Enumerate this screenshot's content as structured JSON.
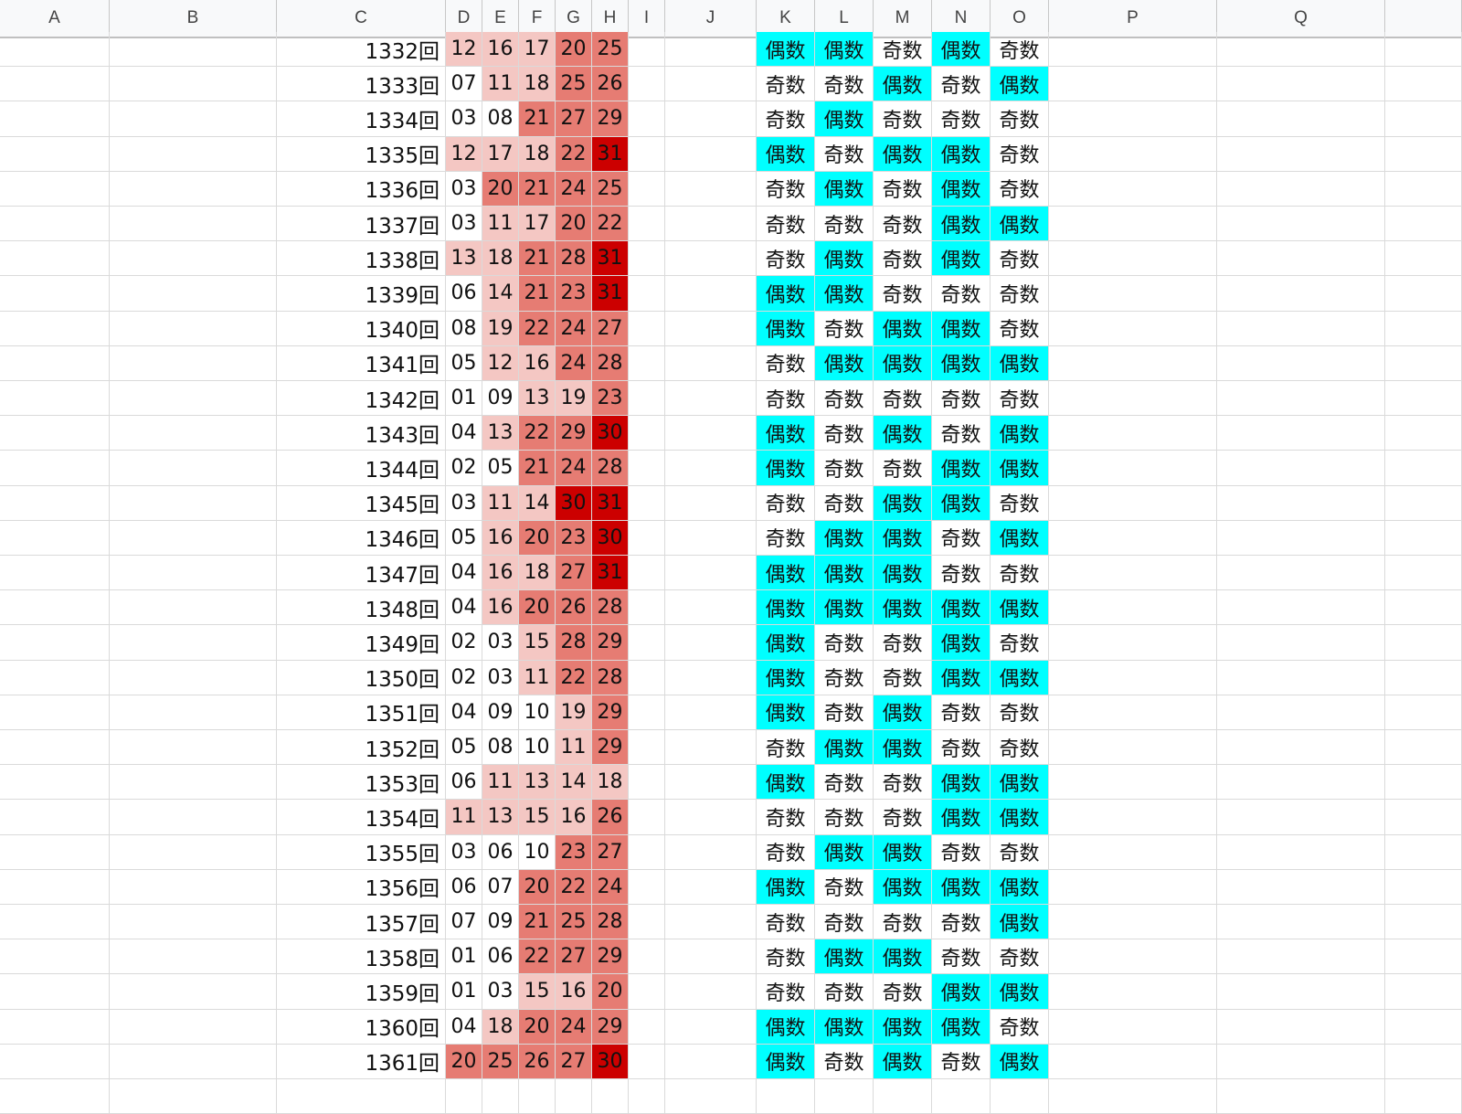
{
  "column_headers": [
    "A",
    "B",
    "C",
    "D",
    "E",
    "F",
    "G",
    "H",
    "I",
    "J",
    "K",
    "L",
    "M",
    "N",
    "O",
    "P",
    "Q"
  ],
  "colors": {
    "pink_light": "#f4c7c3",
    "salmon": "#e67c73",
    "dark_red": "#cc0000",
    "cyan": "#00ffff",
    "white": "#ffffff",
    "gridline": "#dadada"
  },
  "rows": [
    {
      "draw": "1332回",
      "numbers": [
        "12",
        "16",
        "17",
        "20",
        "25"
      ],
      "fills": [
        "pink_light",
        "pink_light",
        "pink_light",
        "salmon",
        "salmon"
      ],
      "parity": [
        "偶数",
        "偶数",
        "奇数",
        "偶数",
        "奇数"
      ]
    },
    {
      "draw": "1333回",
      "numbers": [
        "07",
        "11",
        "18",
        "25",
        "26"
      ],
      "fills": [
        "white",
        "pink_light",
        "pink_light",
        "salmon",
        "salmon"
      ],
      "parity": [
        "奇数",
        "奇数",
        "偶数",
        "奇数",
        "偶数"
      ]
    },
    {
      "draw": "1334回",
      "numbers": [
        "03",
        "08",
        "21",
        "27",
        "29"
      ],
      "fills": [
        "white",
        "white",
        "salmon",
        "salmon",
        "salmon"
      ],
      "parity": [
        "奇数",
        "偶数",
        "奇数",
        "奇数",
        "奇数"
      ]
    },
    {
      "draw": "1335回",
      "numbers": [
        "12",
        "17",
        "18",
        "22",
        "31"
      ],
      "fills": [
        "pink_light",
        "pink_light",
        "pink_light",
        "salmon",
        "dark_red"
      ],
      "parity": [
        "偶数",
        "奇数",
        "偶数",
        "偶数",
        "奇数"
      ]
    },
    {
      "draw": "1336回",
      "numbers": [
        "03",
        "20",
        "21",
        "24",
        "25"
      ],
      "fills": [
        "white",
        "salmon",
        "salmon",
        "salmon",
        "salmon"
      ],
      "parity": [
        "奇数",
        "偶数",
        "奇数",
        "偶数",
        "奇数"
      ]
    },
    {
      "draw": "1337回",
      "numbers": [
        "03",
        "11",
        "17",
        "20",
        "22"
      ],
      "fills": [
        "white",
        "pink_light",
        "pink_light",
        "salmon",
        "salmon"
      ],
      "parity": [
        "奇数",
        "奇数",
        "奇数",
        "偶数",
        "偶数"
      ]
    },
    {
      "draw": "1338回",
      "numbers": [
        "13",
        "18",
        "21",
        "28",
        "31"
      ],
      "fills": [
        "pink_light",
        "pink_light",
        "salmon",
        "salmon",
        "dark_red"
      ],
      "parity": [
        "奇数",
        "偶数",
        "奇数",
        "偶数",
        "奇数"
      ]
    },
    {
      "draw": "1339回",
      "numbers": [
        "06",
        "14",
        "21",
        "23",
        "31"
      ],
      "fills": [
        "white",
        "pink_light",
        "salmon",
        "salmon",
        "dark_red"
      ],
      "parity": [
        "偶数",
        "偶数",
        "奇数",
        "奇数",
        "奇数"
      ]
    },
    {
      "draw": "1340回",
      "numbers": [
        "08",
        "19",
        "22",
        "24",
        "27"
      ],
      "fills": [
        "white",
        "pink_light",
        "salmon",
        "salmon",
        "salmon"
      ],
      "parity": [
        "偶数",
        "奇数",
        "偶数",
        "偶数",
        "奇数"
      ]
    },
    {
      "draw": "1341回",
      "numbers": [
        "05",
        "12",
        "16",
        "24",
        "28"
      ],
      "fills": [
        "white",
        "pink_light",
        "pink_light",
        "salmon",
        "salmon"
      ],
      "parity": [
        "奇数",
        "偶数",
        "偶数",
        "偶数",
        "偶数"
      ]
    },
    {
      "draw": "1342回",
      "numbers": [
        "01",
        "09",
        "13",
        "19",
        "23"
      ],
      "fills": [
        "white",
        "white",
        "pink_light",
        "pink_light",
        "salmon"
      ],
      "parity": [
        "奇数",
        "奇数",
        "奇数",
        "奇数",
        "奇数"
      ]
    },
    {
      "draw": "1343回",
      "numbers": [
        "04",
        "13",
        "22",
        "29",
        "30"
      ],
      "fills": [
        "white",
        "pink_light",
        "salmon",
        "salmon",
        "dark_red"
      ],
      "parity": [
        "偶数",
        "奇数",
        "偶数",
        "奇数",
        "偶数"
      ]
    },
    {
      "draw": "1344回",
      "numbers": [
        "02",
        "05",
        "21",
        "24",
        "28"
      ],
      "fills": [
        "white",
        "white",
        "salmon",
        "salmon",
        "salmon"
      ],
      "parity": [
        "偶数",
        "奇数",
        "奇数",
        "偶数",
        "偶数"
      ]
    },
    {
      "draw": "1345回",
      "numbers": [
        "03",
        "11",
        "14",
        "30",
        "31"
      ],
      "fills": [
        "white",
        "pink_light",
        "pink_light",
        "dark_red",
        "dark_red"
      ],
      "parity": [
        "奇数",
        "奇数",
        "偶数",
        "偶数",
        "奇数"
      ]
    },
    {
      "draw": "1346回",
      "numbers": [
        "05",
        "16",
        "20",
        "23",
        "30"
      ],
      "fills": [
        "white",
        "pink_light",
        "salmon",
        "salmon",
        "dark_red"
      ],
      "parity": [
        "奇数",
        "偶数",
        "偶数",
        "奇数",
        "偶数"
      ]
    },
    {
      "draw": "1347回",
      "numbers": [
        "04",
        "16",
        "18",
        "27",
        "31"
      ],
      "fills": [
        "white",
        "pink_light",
        "pink_light",
        "salmon",
        "dark_red"
      ],
      "parity": [
        "偶数",
        "偶数",
        "偶数",
        "奇数",
        "奇数"
      ]
    },
    {
      "draw": "1348回",
      "numbers": [
        "04",
        "16",
        "20",
        "26",
        "28"
      ],
      "fills": [
        "white",
        "pink_light",
        "salmon",
        "salmon",
        "salmon"
      ],
      "parity": [
        "偶数",
        "偶数",
        "偶数",
        "偶数",
        "偶数"
      ]
    },
    {
      "draw": "1349回",
      "numbers": [
        "02",
        "03",
        "15",
        "28",
        "29"
      ],
      "fills": [
        "white",
        "white",
        "pink_light",
        "salmon",
        "salmon"
      ],
      "parity": [
        "偶数",
        "奇数",
        "奇数",
        "偶数",
        "奇数"
      ]
    },
    {
      "draw": "1350回",
      "numbers": [
        "02",
        "03",
        "11",
        "22",
        "28"
      ],
      "fills": [
        "white",
        "white",
        "pink_light",
        "salmon",
        "salmon"
      ],
      "parity": [
        "偶数",
        "奇数",
        "奇数",
        "偶数",
        "偶数"
      ]
    },
    {
      "draw": "1351回",
      "numbers": [
        "04",
        "09",
        "10",
        "19",
        "29"
      ],
      "fills": [
        "white",
        "white",
        "white",
        "pink_light",
        "salmon"
      ],
      "parity": [
        "偶数",
        "奇数",
        "偶数",
        "奇数",
        "奇数"
      ]
    },
    {
      "draw": "1352回",
      "numbers": [
        "05",
        "08",
        "10",
        "11",
        "29"
      ],
      "fills": [
        "white",
        "white",
        "white",
        "pink_light",
        "salmon"
      ],
      "parity": [
        "奇数",
        "偶数",
        "偶数",
        "奇数",
        "奇数"
      ]
    },
    {
      "draw": "1353回",
      "numbers": [
        "06",
        "11",
        "13",
        "14",
        "18"
      ],
      "fills": [
        "white",
        "pink_light",
        "pink_light",
        "pink_light",
        "pink_light"
      ],
      "parity": [
        "偶数",
        "奇数",
        "奇数",
        "偶数",
        "偶数"
      ]
    },
    {
      "draw": "1354回",
      "numbers": [
        "11",
        "13",
        "15",
        "16",
        "26"
      ],
      "fills": [
        "pink_light",
        "pink_light",
        "pink_light",
        "pink_light",
        "salmon"
      ],
      "parity": [
        "奇数",
        "奇数",
        "奇数",
        "偶数",
        "偶数"
      ]
    },
    {
      "draw": "1355回",
      "numbers": [
        "03",
        "06",
        "10",
        "23",
        "27"
      ],
      "fills": [
        "white",
        "white",
        "white",
        "salmon",
        "salmon"
      ],
      "parity": [
        "奇数",
        "偶数",
        "偶数",
        "奇数",
        "奇数"
      ]
    },
    {
      "draw": "1356回",
      "numbers": [
        "06",
        "07",
        "20",
        "22",
        "24"
      ],
      "fills": [
        "white",
        "white",
        "salmon",
        "salmon",
        "salmon"
      ],
      "parity": [
        "偶数",
        "奇数",
        "偶数",
        "偶数",
        "偶数"
      ]
    },
    {
      "draw": "1357回",
      "numbers": [
        "07",
        "09",
        "21",
        "25",
        "28"
      ],
      "fills": [
        "white",
        "white",
        "salmon",
        "salmon",
        "salmon"
      ],
      "parity": [
        "奇数",
        "奇数",
        "奇数",
        "奇数",
        "偶数"
      ]
    },
    {
      "draw": "1358回",
      "numbers": [
        "01",
        "06",
        "22",
        "27",
        "29"
      ],
      "fills": [
        "white",
        "white",
        "salmon",
        "salmon",
        "salmon"
      ],
      "parity": [
        "奇数",
        "偶数",
        "偶数",
        "奇数",
        "奇数"
      ]
    },
    {
      "draw": "1359回",
      "numbers": [
        "01",
        "03",
        "15",
        "16",
        "20"
      ],
      "fills": [
        "white",
        "white",
        "pink_light",
        "pink_light",
        "salmon"
      ],
      "parity": [
        "奇数",
        "奇数",
        "奇数",
        "偶数",
        "偶数"
      ]
    },
    {
      "draw": "1360回",
      "numbers": [
        "04",
        "18",
        "20",
        "24",
        "29"
      ],
      "fills": [
        "white",
        "pink_light",
        "salmon",
        "salmon",
        "salmon"
      ],
      "parity": [
        "偶数",
        "偶数",
        "偶数",
        "偶数",
        "奇数"
      ]
    },
    {
      "draw": "1361回",
      "numbers": [
        "20",
        "25",
        "26",
        "27",
        "30"
      ],
      "fills": [
        "salmon",
        "salmon",
        "salmon",
        "salmon",
        "dark_red"
      ],
      "parity": [
        "偶数",
        "奇数",
        "偶数",
        "奇数",
        "偶数"
      ]
    }
  ]
}
